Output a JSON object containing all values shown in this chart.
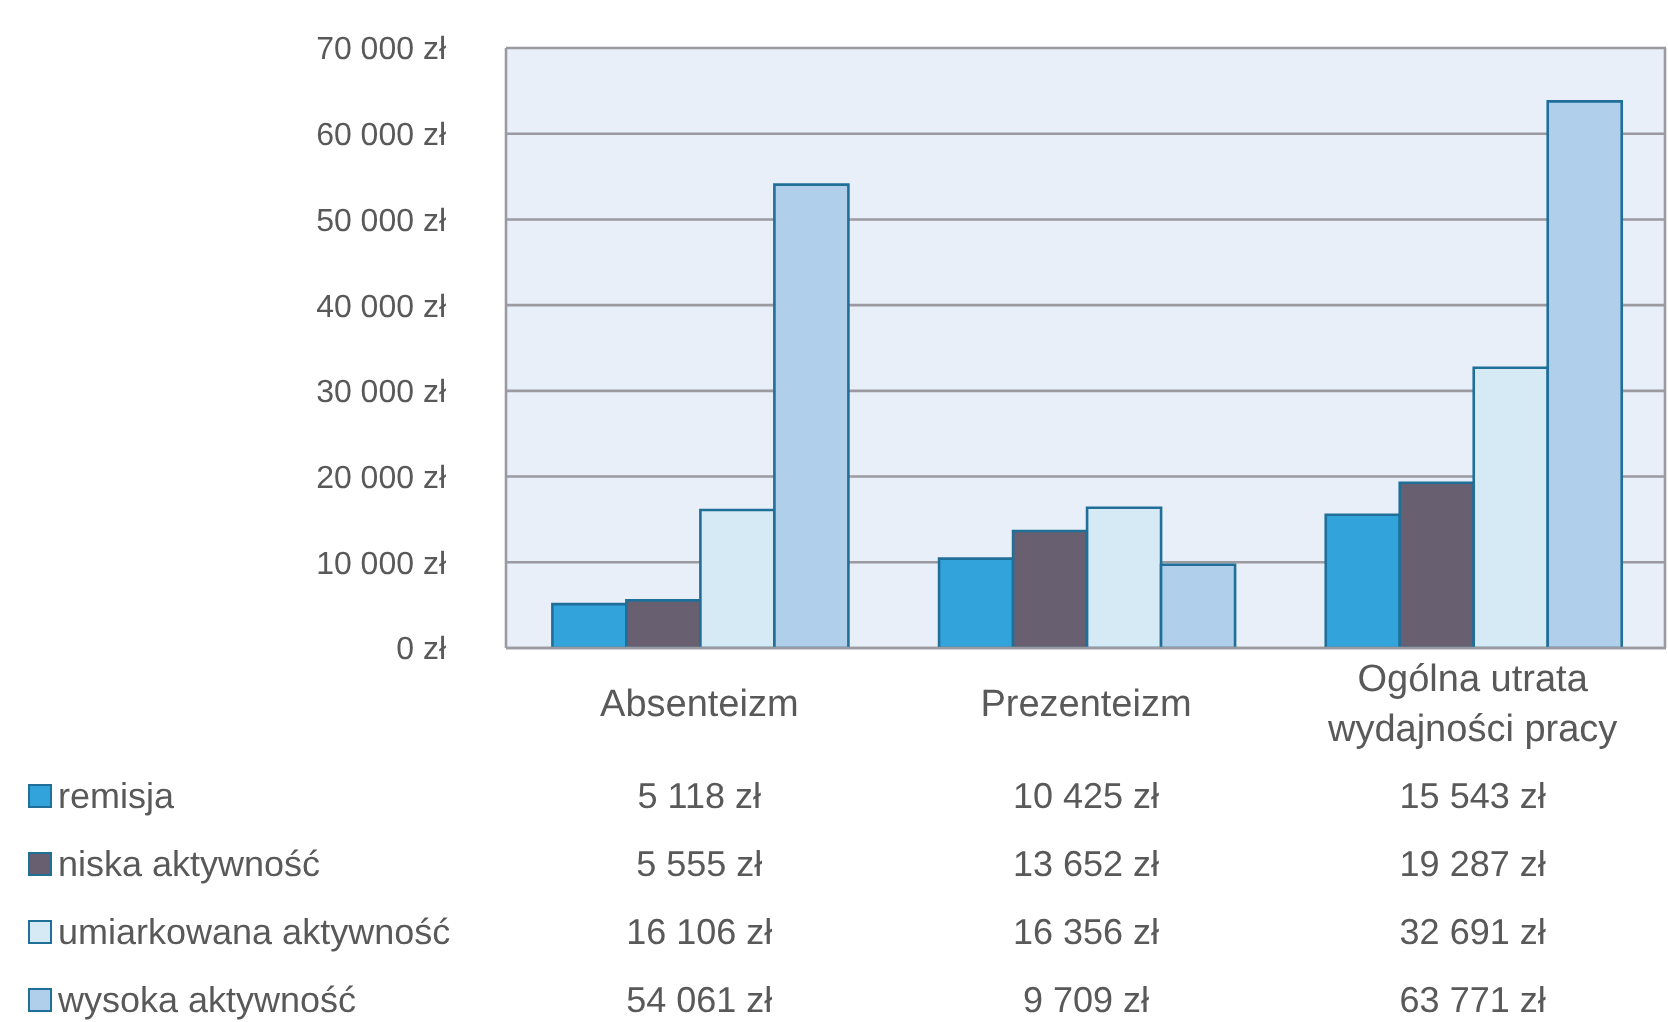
{
  "chart_data": {
    "type": "bar",
    "categories": [
      "Absenteizm",
      "Prezenteizm",
      "Ogólna utrata wydajności pracy"
    ],
    "series": [
      {
        "name": "remisja",
        "color": "#33a3dc",
        "values": [
          5118,
          10425,
          15543
        ],
        "value_labels": [
          "5 118 zł",
          "10 425 zł",
          "15 543 zł"
        ]
      },
      {
        "name": "niska aktywność",
        "color": "#686070",
        "values": [
          5555,
          13652,
          19287
        ],
        "value_labels": [
          "5 555 zł",
          "13 652 zł",
          "19 287 zł"
        ]
      },
      {
        "name": "umiarkowana aktywność",
        "color": "#d6eaf6",
        "values": [
          16106,
          16356,
          32691
        ],
        "value_labels": [
          "16 106 zł",
          "16 356 zł",
          "32 691 zł"
        ]
      },
      {
        "name": "wysoka aktywność",
        "color": "#b0cfeb",
        "values": [
          54061,
          9709,
          63771
        ],
        "value_labels": [
          "54 061 zł",
          "9 709 zł",
          "63 771 zł"
        ]
      }
    ],
    "ylim": [
      0,
      70000
    ],
    "yticks": [
      {
        "value": 0,
        "label": "0 zł"
      },
      {
        "value": 10000,
        "label": "10 000 zł"
      },
      {
        "value": 20000,
        "label": "20 000 zł"
      },
      {
        "value": 30000,
        "label": "30 000 zł"
      },
      {
        "value": 40000,
        "label": "40 000 zł"
      },
      {
        "value": 50000,
        "label": "50 000 zł"
      },
      {
        "value": 60000,
        "label": "60 000 zł"
      },
      {
        "value": 70000,
        "label": "70 000 zł"
      }
    ],
    "grid": "y",
    "legend": "bottom left"
  }
}
